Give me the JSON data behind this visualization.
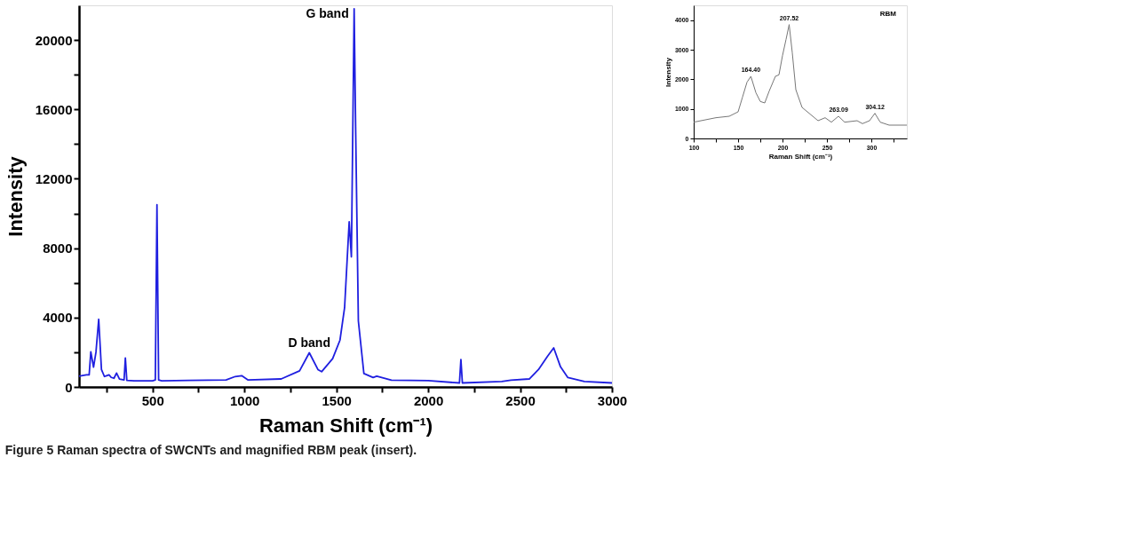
{
  "chart_data": [
    {
      "type": "line",
      "xlabel": "Raman Shift (cm⁻¹)",
      "ylabel": "Intensity",
      "xlim": [
        100,
        3000
      ],
      "ylim": [
        0,
        22000
      ],
      "xticks": [
        {
          "value": 250,
          "label": null
        },
        500,
        {
          "value": 750,
          "label": null
        },
        1000,
        {
          "value": 1250,
          "label": null
        },
        1500,
        {
          "value": 1750,
          "label": null
        },
        2000,
        {
          "value": 2250,
          "label": null
        },
        2500,
        {
          "value": 2750,
          "label": null
        },
        3000
      ],
      "yticks": [
        0,
        {
          "value": 2000,
          "label": null
        },
        4000,
        {
          "value": 6000,
          "label": null
        },
        8000,
        {
          "value": 10000,
          "label": null
        },
        12000,
        {
          "value": 14000,
          "label": null
        },
        16000,
        {
          "value": 18000,
          "label": null
        },
        20000
      ],
      "grid": false,
      "marker": "none",
      "line_style": "solid",
      "x": [
        100,
        140,
        155,
        164,
        179,
        192,
        207,
        222,
        238,
        250,
        263,
        275,
        290,
        304,
        320,
        345,
        352,
        360,
        400,
        500,
        515,
        524,
        533,
        550,
        700,
        900,
        950,
        985,
        1020,
        1200,
        1300,
        1353,
        1400,
        1420,
        1480,
        1520,
        1545,
        1570,
        1582,
        1597,
        1605,
        1620,
        1650,
        1700,
        1720,
        1800,
        2000,
        2170,
        2178,
        2186,
        2400,
        2450,
        2550,
        2600,
        2650,
        2683,
        2720,
        2760,
        2850,
        3000
      ],
      "series": [
        {
          "color": "#1f1fe0",
          "values": [
            620,
            700,
            700,
            2020,
            1140,
            2000,
            3900,
            1000,
            600,
            650,
            700,
            550,
            500,
            800,
            450,
            400,
            1670,
            380,
            350,
            350,
            400,
            10500,
            400,
            350,
            380,
            400,
            600,
            650,
            400,
            460,
            930,
            1970,
            1000,
            880,
            1630,
            2700,
            4570,
            9520,
            7500,
            21800,
            15000,
            3800,
            770,
            540,
            620,
            390,
            360,
            230,
            1580,
            230,
            310,
            390,
            460,
            1000,
            1780,
            2250,
            1160,
            540,
            310,
            230
          ]
        }
      ],
      "annotations": [
        {
          "text": "G band",
          "x": 1597,
          "y": 21800
        },
        {
          "text": "D band",
          "x": 1353,
          "y": 1970
        },
        "Figure 5 Raman spectra of SWCNTs and magnified RBM peak (insert)."
      ]
    },
    {
      "type": "line",
      "xlabel": "Raman Shift (cm⁻¹)",
      "ylabel": "Intensity",
      "xlim": [
        100,
        340
      ],
      "ylim": [
        0,
        4500
      ],
      "xticks": [
        100,
        {
          "value": 125,
          "label": null
        },
        150,
        {
          "value": 175,
          "label": null
        },
        200,
        {
          "value": 225,
          "label": null
        },
        250,
        {
          "value": 275,
          "label": null
        },
        300,
        {
          "value": 325,
          "label": null
        }
      ],
      "yticks": [
        0,
        1000,
        2000,
        3000,
        4000
      ],
      "grid": false,
      "marker": "none",
      "line_style": "solid",
      "x": [
        100,
        125,
        140,
        150,
        155,
        160,
        164.4,
        170,
        175,
        180,
        185,
        192,
        196,
        200,
        204,
        207.5,
        211,
        215,
        222,
        230,
        240,
        248,
        255,
        263,
        270,
        284,
        290,
        298,
        304,
        310,
        320,
        340
      ],
      "series": [
        {
          "color": "#777777",
          "values": [
            550,
            700,
            750,
            900,
            1400,
            1900,
            2100,
            1550,
            1250,
            1200,
            1600,
            2100,
            2150,
            2800,
            3350,
            3850,
            2900,
            1650,
            1050,
            850,
            600,
            700,
            550,
            750,
            550,
            600,
            500,
            600,
            850,
            550,
            450,
            450
          ]
        }
      ],
      "annotations": [
        {
          "text": "164.40",
          "x": 164.4,
          "y": 2100
        },
        {
          "text": "207.52",
          "x": 207.52,
          "y": 3850
        },
        {
          "text": "263.09",
          "x": 263.09,
          "y": 750
        },
        {
          "text": "304.12",
          "x": 304.12,
          "y": 850
        },
        "RBM"
      ]
    }
  ]
}
